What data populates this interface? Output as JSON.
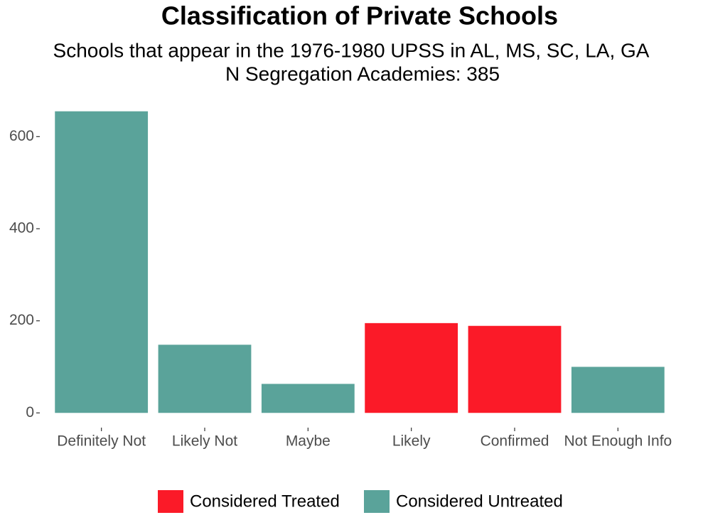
{
  "chart_data": {
    "type": "bar",
    "title": "Classification of Private Schools",
    "subtitle": [
      "Schools that appear in the 1976-1980 UPSS in AL, MS, SC, LA, GA",
      "N Segregation Academies: 385"
    ],
    "categories": [
      "Definitely Not",
      "Likely Not",
      "Maybe",
      "Likely",
      "Confirmed",
      "Not Enough Info"
    ],
    "series": [
      {
        "name": "Considered Treated",
        "color": "#fb1a28",
        "values": [
          null,
          null,
          null,
          195,
          189,
          null
        ]
      },
      {
        "name": "Considered Untreated",
        "color": "#5aa39a",
        "values": [
          655,
          148,
          63,
          null,
          null,
          100
        ]
      }
    ],
    "ylim": [
      -32,
      690
    ],
    "yticks": [
      0,
      200,
      400,
      600
    ],
    "grid": false,
    "legend": "bottom"
  }
}
